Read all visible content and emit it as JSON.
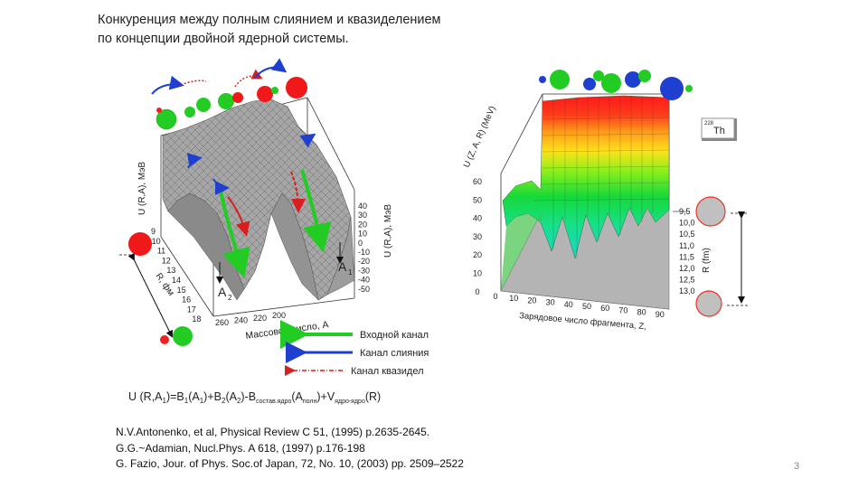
{
  "slide": {
    "title_line1": "Конкуренция между полным слиянием и квазиделением",
    "title_line2": "по концепции двойной ядерной системы.",
    "page_number": "3"
  },
  "left_plot": {
    "z_axis_label": "U (R,A), МэВ",
    "z_axis_label_right": "U (R,A), МэВ",
    "z_ticks": [
      "40",
      "30",
      "20",
      "10",
      "0",
      "-10",
      "-20",
      "-30",
      "-40",
      "-50"
    ],
    "r_axis_label": "R, фм",
    "r_ticks": [
      "9",
      "10",
      "11",
      "12",
      "13",
      "14",
      "15",
      "16",
      "17",
      "18"
    ],
    "a_axis_label": "Массовое число, A",
    "a_ticks": [
      "260",
      "240",
      "220",
      "200"
    ],
    "a1_label": "A",
    "a1_sub": "1",
    "a2_label": "A",
    "a2_sub": "2"
  },
  "legend": {
    "entrance": "Входной канал",
    "fusion": "Канал слияния",
    "quasifission": "Канал квазидел"
  },
  "formula": {
    "text": "U (R,A₁)=B₁(A₁)+B₂(A₂)-Bсостав.ядро(Aполн)+Vядро-ядро(R)"
  },
  "right_plot": {
    "z_axis_label": "U (Z, A, R) (MeV)",
    "z_ticks": [
      "60",
      "50",
      "40",
      "30",
      "20",
      "10",
      "0"
    ],
    "x_axis_label": "Зарядовое число фрагмента, Z,",
    "x_ticks": [
      "0",
      "10",
      "20",
      "30",
      "40",
      "50",
      "60",
      "70",
      "80",
      "90"
    ],
    "r_axis_label": "R (fm)",
    "r_ticks": [
      "9,5",
      "10,0",
      "10,5",
      "11,0",
      "11,5",
      "12,0",
      "12,5",
      "13,0"
    ],
    "nucleus_mass": "228",
    "nucleus_symbol": "Th"
  },
  "references": [
    "N.V.Antonenko, et al, Physical Review C 51, (1995) p.2635-2645.",
    "G.G.~Adamian, Nucl.Phys. A 618, (1997) p.176-198",
    "G. Fazio, Jour. of Phys. Soc.of Japan, 72, No. 10, (2003) pp. 2509–2522"
  ],
  "colors": {
    "surface_gray": "#a9a9a9",
    "entrance_green": "#22cc22",
    "fusion_blue": "#1f3fd0",
    "quasifission_red": "#d81e1e"
  }
}
